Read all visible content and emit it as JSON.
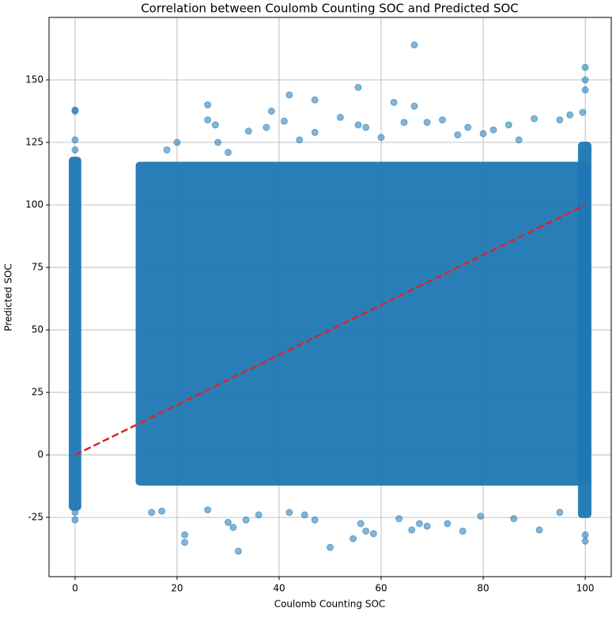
{
  "chart_data": {
    "type": "scatter",
    "title": "Correlation between Coulomb Counting SOC and Predicted SOC",
    "xlabel": "Coulomb Counting SOC",
    "ylabel": "Predicted SOC",
    "xlim": [
      -5.1,
      105.1
    ],
    "ylim": [
      -48.7,
      175
    ],
    "xticks": [
      0,
      20,
      40,
      60,
      80,
      100
    ],
    "yticks": [
      -25,
      0,
      25,
      50,
      75,
      100,
      125,
      150
    ],
    "grid": true,
    "color": "#1f77b4",
    "point_clouds": [
      {
        "xlim": [
          12.5,
          100.3
        ],
        "ylim": [
          -11,
          116
        ]
      },
      {
        "xlim": [
          -0.6,
          0.6
        ],
        "ylim": [
          -21,
          118
        ]
      },
      {
        "xlim": [
          99.2,
          100.6
        ],
        "ylim": [
          -24,
          124
        ]
      }
    ],
    "x": [
      0,
      0,
      0,
      0,
      0,
      0,
      66.5,
      55.5,
      100,
      100,
      100,
      42,
      47,
      26,
      38.5,
      66.5,
      62.5,
      26,
      27.5,
      41,
      34,
      37.5,
      47,
      52,
      55.5,
      57,
      64.5,
      69,
      72,
      77,
      80,
      82,
      85,
      90,
      95,
      97,
      99.5,
      20,
      28,
      30,
      18,
      87,
      75,
      60,
      44,
      32,
      50,
      21.5,
      21.5,
      54.5,
      57,
      58.5,
      66,
      67.5,
      69,
      76,
      91,
      100,
      100,
      30,
      31,
      33.5,
      36,
      42,
      47,
      56,
      63.5,
      73,
      79.5,
      86,
      15,
      17,
      26,
      45,
      95
    ],
    "y": [
      138,
      137.5,
      126,
      122,
      -26,
      -23,
      164,
      147,
      155,
      150,
      146,
      144,
      142,
      140,
      137.5,
      139.5,
      141,
      134,
      132,
      133.5,
      129.5,
      131,
      129,
      135,
      132,
      131,
      133,
      133,
      134,
      131,
      128.5,
      130,
      132,
      134.5,
      134,
      136,
      137,
      125,
      125,
      121,
      122,
      126,
      128,
      127,
      126,
      -38.5,
      -37,
      -32,
      -35,
      -33.5,
      -30.5,
      -31.5,
      -30,
      -27.5,
      -28.5,
      -30.5,
      -30,
      -32,
      -34.5,
      -27,
      -29,
      -26,
      -24,
      -23,
      -26,
      -27.5,
      -25.5,
      -27.5,
      -24.5,
      -25.5,
      -23,
      -22.5,
      -22,
      -24,
      -23
    ],
    "reference_line": {
      "x": [
        0,
        100
      ],
      "y": [
        0,
        100
      ],
      "color": "#d62728"
    }
  }
}
